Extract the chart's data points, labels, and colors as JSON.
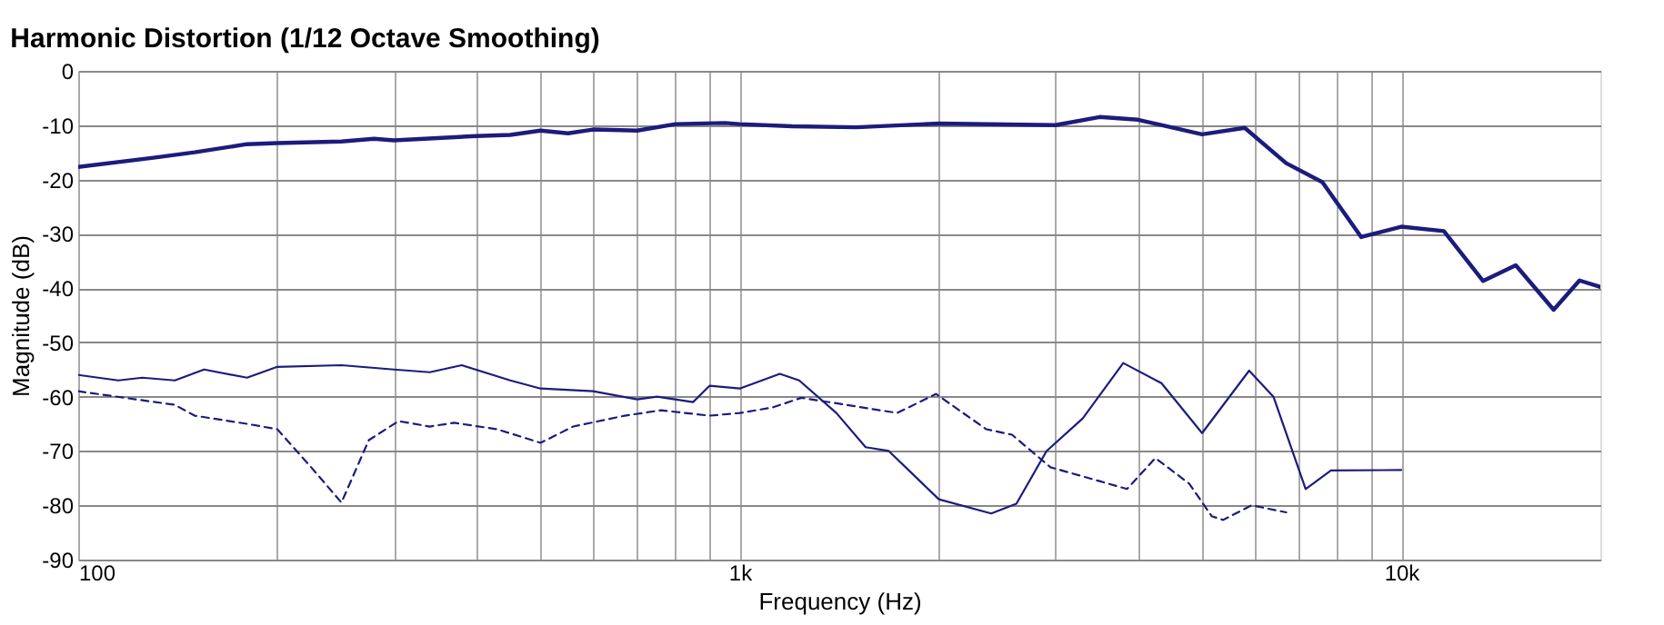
{
  "chart_data": {
    "type": "line",
    "title": "Harmonic Distortion (1/12 Octave Smoothing)",
    "xlabel": "Frequency (Hz)",
    "ylabel": "Magnitude (dB)",
    "log": "x",
    "grid": true,
    "marker": "none",
    "xlim": [
      100,
      20000
    ],
    "ylim": [
      -90,
      0
    ],
    "xticks": [
      {
        "value": 100,
        "label": "100"
      },
      {
        "value": 200,
        "label": null
      },
      {
        "value": 300,
        "label": null
      },
      {
        "value": 400,
        "label": null
      },
      {
        "value": 500,
        "label": null
      },
      {
        "value": 600,
        "label": null
      },
      {
        "value": 700,
        "label": null
      },
      {
        "value": 800,
        "label": null
      },
      {
        "value": 900,
        "label": null
      },
      {
        "value": 1000,
        "label": "1k"
      },
      {
        "value": 2000,
        "label": null
      },
      {
        "value": 3000,
        "label": null
      },
      {
        "value": 4000,
        "label": null
      },
      {
        "value": 5000,
        "label": null
      },
      {
        "value": 6000,
        "label": null
      },
      {
        "value": 7000,
        "label": null
      },
      {
        "value": 8000,
        "label": null
      },
      {
        "value": 9000,
        "label": null
      },
      {
        "value": 10000,
        "label": "10k"
      }
    ],
    "yticks": [
      0,
      -10,
      -20,
      -30,
      -40,
      -50,
      -60,
      -70,
      -80,
      -90
    ],
    "series": [
      {
        "color": "#1c1c7c",
        "line_style": "solid",
        "x": [
          100,
          130,
          150,
          180,
          200,
          250,
          280,
          300,
          400,
          450,
          500,
          550,
          600,
          700,
          800,
          950,
          1000,
          1200,
          1500,
          2000,
          3000,
          3500,
          4000,
          5000,
          5800,
          6700,
          7600,
          8700,
          10000,
          11600,
          13300,
          14900,
          17000,
          18600,
          20000
        ],
        "values": [
          -17.7,
          -16,
          -15,
          -13.5,
          -13.3,
          -13,
          -12.5,
          -12.8,
          -12,
          -11.8,
          -11,
          -11.5,
          -10.8,
          -11,
          -9.8,
          -9.6,
          -9.8,
          -10.2,
          -10.4,
          -9.7,
          -10,
          -8.5,
          -9,
          -11.7,
          -10.5,
          -17,
          -20.5,
          -30.6,
          -28.7,
          -29.5,
          -38.7,
          -35.8,
          -44,
          -38.6,
          -39.8
        ]
      },
      {
        "color": "#1c1c7c",
        "line_style": "solid",
        "x": [
          100,
          115,
          125,
          140,
          155,
          180,
          200,
          250,
          300,
          340,
          380,
          450,
          500,
          600,
          700,
          750,
          850,
          900,
          1000,
          1150,
          1230,
          1400,
          1550,
          1680,
          2000,
          2400,
          2620,
          2910,
          3300,
          3800,
          4340,
          5000,
          5890,
          6410,
          7170,
          7830,
          10000
        ],
        "values": [
          -56,
          -57,
          -56.5,
          -57,
          -55,
          -56.5,
          -54.5,
          -54.2,
          -55,
          -55.5,
          -54.2,
          -57,
          -58.5,
          -59,
          -60.5,
          -60,
          -61,
          -58,
          -58.5,
          -55.8,
          -57,
          -63,
          -69.3,
          -70,
          -78.9,
          -81.5,
          -79.7,
          -70,
          -64,
          -53.8,
          -57.5,
          -66.7,
          -55.2,
          -60,
          -77,
          -73.6,
          -73.5
        ]
      },
      {
        "color": "#1c1c7c",
        "line_style": "dashed",
        "x": [
          100,
          140,
          150,
          180,
          200,
          225,
          250,
          275,
          305,
          340,
          370,
          430,
          500,
          560,
          670,
          760,
          900,
          1000,
          1120,
          1240,
          1730,
          1980,
          2360,
          2580,
          2950,
          3510,
          3850,
          4250,
          4780,
          5170,
          5380,
          5940,
          6700
        ],
        "values": [
          -59,
          -61.5,
          -63.5,
          -65,
          -66,
          -73,
          -79.5,
          -68,
          -64.5,
          -65.5,
          -64.8,
          -66,
          -68.5,
          -65.5,
          -63.5,
          -62.5,
          -63.5,
          -63,
          -62,
          -60.2,
          -63,
          -59.5,
          -66,
          -67,
          -73,
          -75.6,
          -77,
          -71.3,
          -76,
          -82,
          -82.7,
          -80,
          -81.3
        ]
      }
    ]
  }
}
